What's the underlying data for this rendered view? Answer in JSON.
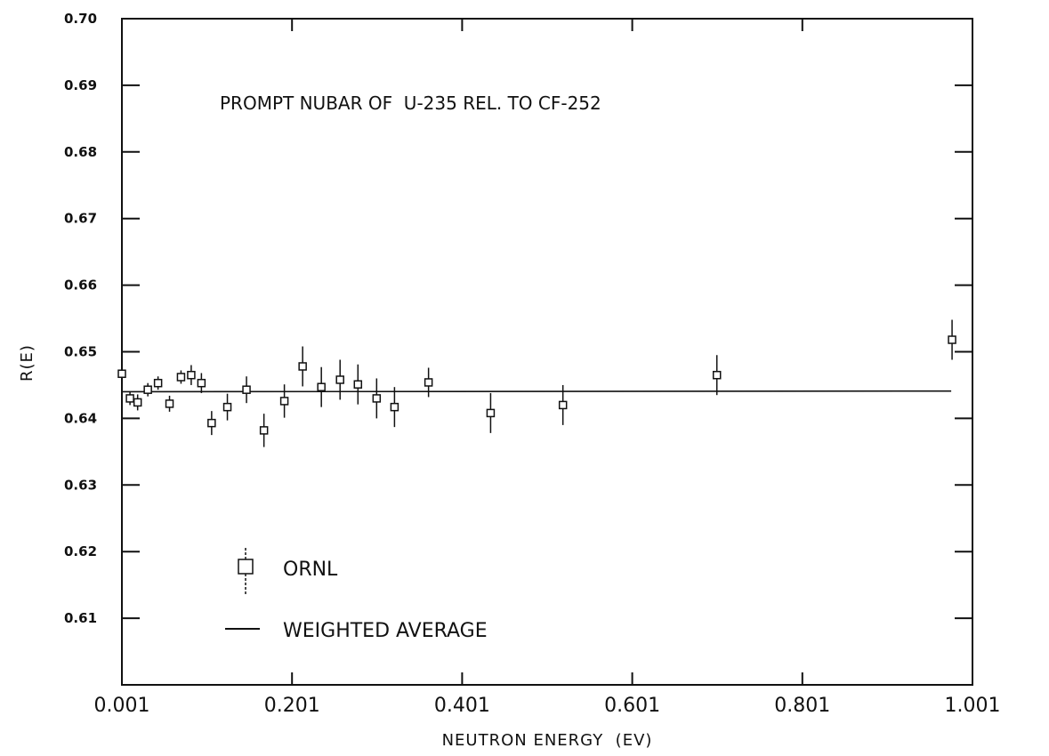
{
  "chart_data": {
    "type": "scatter",
    "title": "PROMPT NUBAR OF  U-235 REL. TO CF-252",
    "xlabel": "NEUTRON ENERGY  (EV)",
    "ylabel": "R(E)",
    "xlim": [
      0.001,
      1.001
    ],
    "ylim": [
      0.6,
      0.7
    ],
    "x_ticks": [
      0.001,
      0.201,
      0.401,
      0.601,
      0.801,
      1.001
    ],
    "x_tick_labels": [
      "0.001",
      "0.201",
      "0.401",
      "0.601",
      "0.801",
      "1.001"
    ],
    "y_ticks": [
      0.61,
      0.62,
      0.63,
      0.64,
      0.65,
      0.66,
      0.67,
      0.68,
      0.69,
      0.7
    ],
    "y_tick_labels": [
      "0.61",
      "0.62",
      "0.63",
      "0.64",
      "0.65",
      "0.66",
      "0.67",
      "0.68",
      "0.69",
      "0.70"
    ],
    "grid": false,
    "legend_position": "bottom-left",
    "series": [
      {
        "name": "ORNL",
        "kind": "points_with_error_bars",
        "points": [
          {
            "x": 0.001,
            "y": 0.6467,
            "err": 0.0015
          },
          {
            "x": 0.0105,
            "y": 0.643,
            "err": 0.001
          },
          {
            "x": 0.0195,
            "y": 0.6424,
            "err": 0.0012
          },
          {
            "x": 0.0315,
            "y": 0.6443,
            "err": 0.001
          },
          {
            "x": 0.0435,
            "y": 0.6453,
            "err": 0.001
          },
          {
            "x": 0.057,
            "y": 0.6422,
            "err": 0.0012
          },
          {
            "x": 0.0705,
            "y": 0.6462,
            "err": 0.001
          },
          {
            "x": 0.0825,
            "y": 0.6465,
            "err": 0.0015
          },
          {
            "x": 0.0945,
            "y": 0.6453,
            "err": 0.0015
          },
          {
            "x": 0.1065,
            "y": 0.6393,
            "err": 0.0018
          },
          {
            "x": 0.125,
            "y": 0.6417,
            "err": 0.002
          },
          {
            "x": 0.1475,
            "y": 0.6443,
            "err": 0.002
          },
          {
            "x": 0.168,
            "y": 0.6382,
            "err": 0.0025
          },
          {
            "x": 0.192,
            "y": 0.6426,
            "err": 0.0025
          },
          {
            "x": 0.2135,
            "y": 0.6478,
            "err": 0.003
          },
          {
            "x": 0.2355,
            "y": 0.6447,
            "err": 0.003
          },
          {
            "x": 0.2575,
            "y": 0.6458,
            "err": 0.003
          },
          {
            "x": 0.2785,
            "y": 0.6451,
            "err": 0.003
          },
          {
            "x": 0.3005,
            "y": 0.643,
            "err": 0.003
          },
          {
            "x": 0.3215,
            "y": 0.6417,
            "err": 0.003
          },
          {
            "x": 0.3615,
            "y": 0.6454,
            "err": 0.0022
          },
          {
            "x": 0.4345,
            "y": 0.6408,
            "err": 0.003
          },
          {
            "x": 0.5195,
            "y": 0.642,
            "err": 0.003
          },
          {
            "x": 0.7005,
            "y": 0.6465,
            "err": 0.003
          },
          {
            "x": 0.977,
            "y": 0.6518,
            "err": 0.003
          }
        ]
      },
      {
        "name": "WEIGHTED AVERAGE",
        "kind": "line",
        "x": [
          0.001,
          0.976
        ],
        "y": [
          0.644,
          0.6441
        ]
      }
    ],
    "legend": [
      {
        "label": "ORNL",
        "marker": "square-with-error-bar"
      },
      {
        "label": "WEIGHTED AVERAGE",
        "marker": "line"
      }
    ]
  }
}
